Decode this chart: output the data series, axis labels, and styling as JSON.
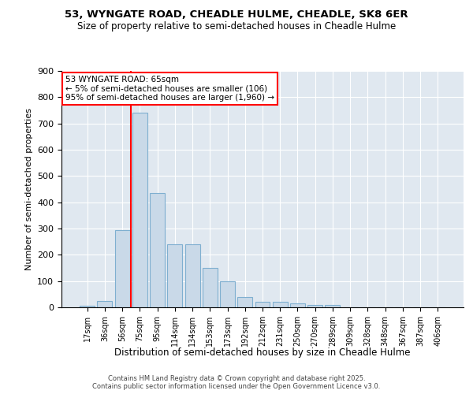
{
  "title1": "53, WYNGATE ROAD, CHEADLE HULME, CHEADLE, SK8 6ER",
  "title2": "Size of property relative to semi-detached houses in Cheadle Hulme",
  "xlabel": "Distribution of semi-detached houses by size in Cheadle Hulme",
  "ylabel": "Number of semi-detached properties",
  "categories": [
    "17sqm",
    "36sqm",
    "56sqm",
    "75sqm",
    "95sqm",
    "114sqm",
    "134sqm",
    "153sqm",
    "173sqm",
    "192sqm",
    "212sqm",
    "231sqm",
    "250sqm",
    "270sqm",
    "289sqm",
    "309sqm",
    "328sqm",
    "348sqm",
    "367sqm",
    "387sqm",
    "406sqm"
  ],
  "values": [
    5,
    25,
    295,
    740,
    435,
    240,
    240,
    150,
    100,
    40,
    20,
    20,
    15,
    10,
    10,
    0,
    0,
    0,
    0,
    0,
    0
  ],
  "bar_color": "#c9d9e8",
  "bar_edge_color": "#7fafd0",
  "vline_x": 2.5,
  "vline_color": "red",
  "annotation_text": "53 WYNGATE ROAD: 65sqm\n← 5% of semi-detached houses are smaller (106)\n95% of semi-detached houses are larger (1,960) →",
  "box_color": "red",
  "background_color": "#e0e8f0",
  "footer": "Contains HM Land Registry data © Crown copyright and database right 2025.\nContains public sector information licensed under the Open Government Licence v3.0.",
  "ylim": [
    0,
    900
  ],
  "yticks": [
    0,
    100,
    200,
    300,
    400,
    500,
    600,
    700,
    800,
    900
  ]
}
